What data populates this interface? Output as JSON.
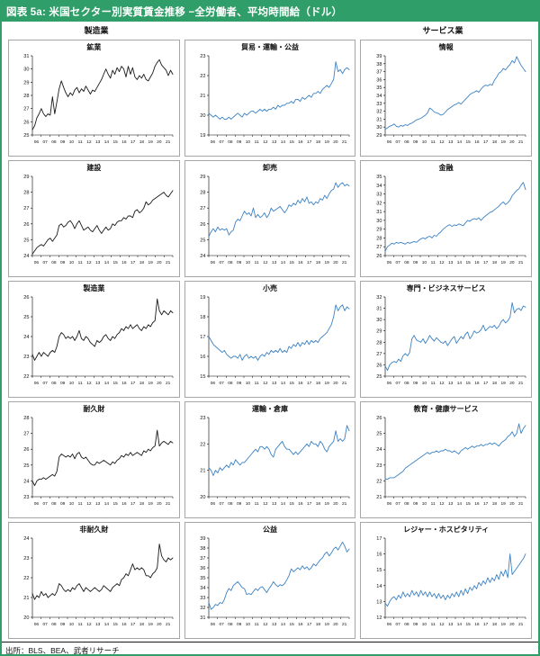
{
  "page": {
    "title": "図表 5a: 米国セクター別実質賃金推移 −全労働者、平均時間給（ドル）",
    "source": "出所：BLS、BEA、武者リサーチ",
    "group_headers": {
      "left": "製造業",
      "right": "サービス業"
    },
    "colors": {
      "header_bg": "#2f9e68",
      "frame_border": "#2f9e68",
      "line_black": "#1a1a1a",
      "line_blue": "#3c82c4",
      "box_border": "#a6a6a6"
    }
  },
  "chart_common": {
    "x_tick_labels": [
      "06",
      "07",
      "08",
      "09",
      "10",
      "11",
      "12",
      "13",
      "14",
      "15",
      "16",
      "17",
      "18",
      "19",
      "20",
      "21"
    ],
    "x_unit": "year",
    "points_per_year": 4,
    "grid": "off",
    "legend": "none"
  },
  "chart_data": [
    {
      "type": "line",
      "title": "鉱業",
      "group": "製造業",
      "color": "black",
      "ylim": [
        25,
        31
      ],
      "yticks": [
        25,
        26,
        27,
        28,
        29,
        30,
        31
      ],
      "values": [
        25.4,
        25.7,
        26.3,
        26.6,
        27.0,
        26.6,
        26.4,
        26.6,
        26.5,
        27.9,
        26.6,
        27.5,
        28.5,
        29.1,
        28.6,
        28.2,
        27.9,
        28.2,
        28.0,
        28.4,
        28.6,
        28.2,
        28.5,
        28.3,
        28.7,
        28.4,
        28.1,
        28.4,
        28.3,
        28.6,
        28.9,
        29.2,
        29.6,
        30.0,
        29.6,
        29.3,
        29.9,
        29.6,
        30.1,
        29.8,
        30.2,
        30.0,
        29.4,
        30.2,
        29.6,
        30.1,
        29.4,
        29.2,
        29.5,
        29.3,
        29.6,
        29.2,
        29.1,
        29.4,
        29.7,
        30.2,
        30.5,
        30.7,
        30.3,
        30.1,
        29.9,
        29.5,
        29.9,
        29.6
      ]
    },
    {
      "type": "line",
      "title": "貿易・運輸・公益",
      "group": "サービス業",
      "color": "blue",
      "ylim": [
        19,
        23
      ],
      "yticks": [
        19,
        20,
        21,
        22,
        23
      ],
      "values": [
        20.1,
        20.0,
        19.9,
        20.0,
        19.9,
        19.8,
        19.9,
        19.8,
        19.8,
        19.9,
        19.8,
        19.9,
        20.0,
        20.1,
        20.0,
        19.9,
        20.1,
        20.0,
        20.1,
        20.2,
        20.2,
        20.1,
        20.2,
        20.3,
        20.2,
        20.3,
        20.2,
        20.3,
        20.3,
        20.4,
        20.3,
        20.5,
        20.4,
        20.5,
        20.5,
        20.6,
        20.6,
        20.7,
        20.6,
        20.8,
        20.8,
        20.7,
        20.9,
        20.8,
        20.9,
        21.0,
        20.9,
        21.1,
        21.1,
        21.2,
        21.1,
        21.3,
        21.4,
        21.5,
        21.4,
        21.6,
        21.8,
        22.7,
        22.2,
        22.3,
        22.1,
        22.3,
        22.4,
        22.3
      ]
    },
    {
      "type": "line",
      "title": "情報",
      "group": "サービス業",
      "color": "blue",
      "ylim": [
        29,
        39
      ],
      "yticks": [
        29,
        30,
        31,
        32,
        33,
        34,
        35,
        36,
        37,
        38,
        39
      ],
      "values": [
        29.7,
        29.9,
        30.1,
        30.2,
        30.4,
        30.1,
        30.0,
        30.2,
        30.1,
        30.3,
        30.2,
        30.4,
        30.5,
        30.7,
        30.9,
        31.0,
        31.1,
        31.3,
        31.5,
        31.8,
        32.4,
        32.2,
        31.9,
        31.8,
        31.7,
        31.5,
        31.6,
        31.9,
        32.2,
        32.4,
        32.6,
        32.8,
        32.9,
        33.1,
        32.9,
        33.2,
        33.5,
        33.8,
        34.1,
        34.3,
        34.4,
        34.6,
        34.4,
        34.8,
        35.1,
        35.3,
        35.2,
        35.4,
        35.3,
        35.9,
        36.3,
        36.8,
        37.0,
        37.4,
        37.2,
        37.6,
        37.9,
        38.4,
        38.1,
        38.9,
        38.3,
        37.8,
        37.4,
        37.0
      ]
    },
    {
      "type": "line",
      "title": "建設",
      "group": "製造業",
      "color": "black",
      "ylim": [
        24,
        29
      ],
      "yticks": [
        24,
        25,
        26,
        27,
        28,
        29
      ],
      "values": [
        24.1,
        24.3,
        24.5,
        24.6,
        24.7,
        24.6,
        24.8,
        25.0,
        25.1,
        24.9,
        25.1,
        25.3,
        25.9,
        26.0,
        25.8,
        25.9,
        26.1,
        26.2,
        26.0,
        25.7,
        26.0,
        26.2,
        25.9,
        25.6,
        25.7,
        25.8,
        25.6,
        25.5,
        25.7,
        25.9,
        25.6,
        25.4,
        25.6,
        25.8,
        25.6,
        25.7,
        26.0,
        25.9,
        26.1,
        26.2,
        26.2,
        26.4,
        26.3,
        26.5,
        26.5,
        26.4,
        26.8,
        26.9,
        26.7,
        26.8,
        27.0,
        27.4,
        27.2,
        27.3,
        27.5,
        27.6,
        27.7,
        27.8,
        27.9,
        28.0,
        27.8,
        27.7,
        27.9,
        28.1
      ]
    },
    {
      "type": "line",
      "title": "卸売",
      "group": "サービス業",
      "color": "blue",
      "ylim": [
        24,
        29
      ],
      "yticks": [
        24,
        25,
        26,
        27,
        28,
        29
      ],
      "values": [
        25.2,
        25.5,
        25.7,
        25.5,
        25.8,
        25.6,
        25.7,
        25.6,
        25.7,
        25.3,
        25.5,
        25.6,
        26.1,
        26.3,
        26.2,
        26.5,
        26.8,
        26.6,
        26.7,
        26.5,
        27.0,
        26.4,
        26.6,
        26.4,
        26.5,
        26.7,
        26.4,
        26.6,
        27.0,
        26.8,
        26.9,
        27.0,
        27.1,
        26.9,
        26.7,
        26.9,
        27.2,
        27.1,
        27.3,
        27.2,
        27.5,
        27.3,
        27.6,
        27.4,
        27.7,
        27.3,
        27.4,
        27.2,
        27.4,
        27.3,
        27.6,
        27.5,
        27.8,
        27.6,
        27.9,
        28.1,
        28.2,
        28.6,
        28.3,
        28.5,
        28.6,
        28.4,
        28.5,
        28.4
      ]
    },
    {
      "type": "line",
      "title": "金融",
      "group": "サービス業",
      "color": "blue",
      "ylim": [
        26,
        35
      ],
      "yticks": [
        26,
        27,
        28,
        29,
        30,
        31,
        32,
        33,
        34,
        35
      ],
      "values": [
        26.5,
        27.0,
        27.2,
        27.4,
        27.3,
        27.5,
        27.4,
        27.5,
        27.4,
        27.3,
        27.5,
        27.4,
        27.5,
        27.6,
        27.5,
        27.7,
        27.9,
        28.0,
        27.9,
        28.1,
        28.2,
        28.0,
        28.3,
        28.2,
        28.5,
        28.7,
        29.0,
        29.2,
        29.4,
        29.5,
        29.3,
        29.5,
        29.4,
        29.6,
        29.5,
        29.4,
        29.7,
        30.0,
        29.9,
        30.1,
        30.2,
        30.1,
        30.3,
        30.0,
        30.3,
        30.5,
        30.7,
        30.9,
        31.0,
        31.2,
        31.4,
        31.6,
        31.9,
        32.1,
        31.8,
        32.0,
        32.3,
        32.8,
        33.1,
        33.4,
        33.6,
        34.0,
        34.3,
        33.5
      ]
    },
    {
      "type": "line",
      "title": "製造業",
      "group": "製造業",
      "color": "black",
      "ylim": [
        22,
        26
      ],
      "yticks": [
        22,
        23,
        24,
        25,
        26
      ],
      "values": [
        23.1,
        22.8,
        23.0,
        23.2,
        23.0,
        23.2,
        23.1,
        23.0,
        23.2,
        23.3,
        23.2,
        23.5,
        24.0,
        24.2,
        24.1,
        23.9,
        24.0,
        23.9,
        24.0,
        23.8,
        24.0,
        24.3,
        23.9,
        23.8,
        24.0,
        23.9,
        23.7,
        23.6,
        23.5,
        23.8,
        23.7,
        23.8,
        24.0,
        24.1,
        23.9,
        23.8,
        24.0,
        23.9,
        24.1,
        24.2,
        24.4,
        24.3,
        24.5,
        24.4,
        24.6,
        24.4,
        24.5,
        24.6,
        24.4,
        24.3,
        24.5,
        24.4,
        24.6,
        24.5,
        24.7,
        24.8,
        25.9,
        25.3,
        25.1,
        25.3,
        25.2,
        25.1,
        25.3,
        25.2
      ]
    },
    {
      "type": "line",
      "title": "小売",
      "group": "サービス業",
      "color": "blue",
      "ylim": [
        15,
        19
      ],
      "yticks": [
        15,
        16,
        17,
        18,
        19
      ],
      "values": [
        17.0,
        16.8,
        16.6,
        16.5,
        16.4,
        16.3,
        16.2,
        16.3,
        16.1,
        16.0,
        15.9,
        16.0,
        16.0,
        15.9,
        16.1,
        15.8,
        16.0,
        16.1,
        15.9,
        16.0,
        15.9,
        16.0,
        15.8,
        16.0,
        16.1,
        16.0,
        16.2,
        16.1,
        16.3,
        16.2,
        16.3,
        16.2,
        16.4,
        16.2,
        16.3,
        16.2,
        16.5,
        16.4,
        16.6,
        16.5,
        16.7,
        16.5,
        16.7,
        16.6,
        16.8,
        16.6,
        16.8,
        16.7,
        16.8,
        16.7,
        16.9,
        17.0,
        17.1,
        17.2,
        17.4,
        17.6,
        18.0,
        18.6,
        18.3,
        18.5,
        18.6,
        18.3,
        18.5,
        18.4
      ]
    },
    {
      "type": "line",
      "title": "専門・ビジネスサービス",
      "group": "サービス業",
      "color": "blue",
      "ylim": [
        25,
        32
      ],
      "yticks": [
        25,
        26,
        27,
        28,
        29,
        30,
        31,
        32
      ],
      "values": [
        25.9,
        25.5,
        26.0,
        26.2,
        26.3,
        26.2,
        26.5,
        26.3,
        26.8,
        27.0,
        26.8,
        27.1,
        28.3,
        28.6,
        28.2,
        28.1,
        28.0,
        28.3,
        27.9,
        28.2,
        28.6,
        28.3,
        28.1,
        28.4,
        28.2,
        28.0,
        27.9,
        28.1,
        27.7,
        28.0,
        28.3,
        28.5,
        27.9,
        28.2,
        28.5,
        28.3,
        28.7,
        28.9,
        28.3,
        28.6,
        29.0,
        28.8,
        28.9,
        29.1,
        29.5,
        29.0,
        29.2,
        29.4,
        29.3,
        29.5,
        29.2,
        29.4,
        29.8,
        30.0,
        29.7,
        29.9,
        30.2,
        31.5,
        30.6,
        30.9,
        31.0,
        30.8,
        31.2,
        31.1
      ]
    },
    {
      "type": "line",
      "title": "耐久財",
      "group": "製造業",
      "color": "black",
      "ylim": [
        23,
        28
      ],
      "yticks": [
        23,
        24,
        25,
        26,
        27,
        28
      ],
      "values": [
        24.0,
        23.7,
        24.0,
        24.1,
        24.1,
        24.2,
        24.1,
        24.2,
        24.3,
        24.4,
        24.3,
        24.6,
        25.5,
        25.7,
        25.6,
        25.5,
        25.6,
        25.5,
        25.7,
        25.4,
        25.7,
        25.8,
        25.5,
        25.4,
        25.5,
        25.3,
        25.1,
        25.0,
        25.0,
        25.2,
        25.1,
        25.2,
        25.3,
        25.2,
        25.1,
        25.0,
        25.2,
        25.1,
        25.3,
        25.4,
        25.6,
        25.5,
        25.7,
        25.6,
        25.8,
        25.6,
        25.7,
        25.8,
        25.7,
        25.6,
        25.9,
        25.8,
        26.0,
        25.9,
        26.1,
        26.2,
        27.2,
        26.2,
        26.4,
        26.5,
        26.4,
        26.3,
        26.5,
        26.4
      ]
    },
    {
      "type": "line",
      "title": "運輸・倉庫",
      "group": "サービス業",
      "color": "blue",
      "ylim": [
        20,
        23
      ],
      "yticks": [
        20,
        21,
        22,
        23
      ],
      "values": [
        21.1,
        21.0,
        20.8,
        21.0,
        20.9,
        21.1,
        21.0,
        21.1,
        21.2,
        21.1,
        21.3,
        21.2,
        21.4,
        21.3,
        21.2,
        21.3,
        21.3,
        21.4,
        21.5,
        21.6,
        21.7,
        21.8,
        21.7,
        21.9,
        21.9,
        21.8,
        21.9,
        21.8,
        21.6,
        21.5,
        21.8,
        21.9,
        22.0,
        22.1,
        21.9,
        21.8,
        21.8,
        21.7,
        21.6,
        21.7,
        21.6,
        21.7,
        21.8,
        21.9,
        22.0,
        21.9,
        22.1,
        22.0,
        22.0,
        21.9,
        22.1,
        22.0,
        21.8,
        21.7,
        21.9,
        22.0,
        22.1,
        22.5,
        22.1,
        22.2,
        22.1,
        22.2,
        22.7,
        22.5
      ]
    },
    {
      "type": "line",
      "title": "教育・健康サービス",
      "group": "サービス業",
      "color": "blue",
      "ylim": [
        21,
        26
      ],
      "yticks": [
        21,
        22,
        23,
        24,
        25,
        26
      ],
      "values": [
        22.1,
        22.1,
        22.2,
        22.2,
        22.2,
        22.3,
        22.4,
        22.5,
        22.6,
        22.8,
        22.9,
        23.0,
        23.1,
        23.2,
        23.3,
        23.4,
        23.5,
        23.6,
        23.7,
        23.8,
        23.7,
        23.8,
        23.8,
        23.9,
        23.8,
        23.9,
        23.9,
        24.0,
        23.9,
        23.9,
        23.8,
        23.9,
        23.8,
        23.7,
        23.9,
        24.0,
        24.1,
        24.0,
        24.1,
        24.2,
        24.1,
        24.2,
        24.2,
        24.3,
        24.2,
        24.3,
        24.3,
        24.4,
        24.3,
        24.4,
        24.3,
        24.2,
        24.4,
        24.5,
        24.6,
        24.8,
        24.9,
        25.1,
        24.8,
        25.0,
        25.6,
        25.0,
        25.3,
        25.5
      ]
    },
    {
      "type": "line",
      "title": "非耐久財",
      "group": "製造業",
      "color": "black",
      "ylim": [
        20,
        24
      ],
      "yticks": [
        20,
        21,
        22,
        23,
        24
      ],
      "values": [
        21.2,
        20.9,
        21.1,
        21.0,
        21.3,
        21.1,
        21.2,
        21.0,
        21.1,
        21.2,
        21.1,
        21.3,
        21.7,
        21.6,
        21.4,
        21.3,
        21.4,
        21.3,
        21.5,
        21.4,
        21.6,
        21.7,
        21.5,
        21.3,
        21.5,
        21.4,
        21.3,
        21.4,
        21.5,
        21.4,
        21.3,
        21.4,
        21.6,
        21.5,
        21.4,
        21.3,
        21.5,
        21.6,
        21.7,
        21.6,
        21.9,
        22.0,
        22.2,
        22.1,
        22.4,
        22.7,
        22.4,
        22.5,
        22.4,
        22.5,
        22.4,
        22.1,
        22.1,
        22.0,
        22.2,
        22.3,
        22.5,
        23.7,
        23.1,
        22.9,
        22.8,
        23.0,
        22.9,
        23.0
      ]
    },
    {
      "type": "line",
      "title": "公益",
      "group": "サービス業",
      "color": "blue",
      "ylim": [
        31,
        39
      ],
      "yticks": [
        31,
        32,
        33,
        34,
        35,
        36,
        37,
        38,
        39
      ],
      "values": [
        32.5,
        31.8,
        32.0,
        32.3,
        32.2,
        32.5,
        32.4,
        32.8,
        33.5,
        33.9,
        33.7,
        34.2,
        34.4,
        34.6,
        34.3,
        34.0,
        33.9,
        33.3,
        33.4,
        33.3,
        33.6,
        33.9,
        33.7,
        34.0,
        34.1,
        33.8,
        33.5,
        33.9,
        34.2,
        34.6,
        34.3,
        34.1,
        34.3,
        34.2,
        34.4,
        34.8,
        35.2,
        35.9,
        35.6,
        35.8,
        36.0,
        35.8,
        36.2,
        35.9,
        36.1,
        35.8,
        36.0,
        36.4,
        36.2,
        36.5,
        36.8,
        37.0,
        37.4,
        37.6,
        37.2,
        37.5,
        37.9,
        38.1,
        37.8,
        38.2,
        38.6,
        38.2,
        37.6,
        37.9
      ]
    },
    {
      "type": "line",
      "title": "レジャー・ホスピタリティ",
      "group": "サービス業",
      "color": "blue",
      "ylim": [
        12,
        17
      ],
      "yticks": [
        12,
        13,
        14,
        15,
        16,
        17
      ],
      "values": [
        12.9,
        12.7,
        13.0,
        13.2,
        13.3,
        13.1,
        13.4,
        13.2,
        13.6,
        13.3,
        13.5,
        13.3,
        13.7,
        13.4,
        13.6,
        13.3,
        13.7,
        13.4,
        13.6,
        13.3,
        13.6,
        13.3,
        13.5,
        13.2,
        13.5,
        13.2,
        13.4,
        13.1,
        13.4,
        13.2,
        13.5,
        13.3,
        13.6,
        13.3,
        13.7,
        13.4,
        13.8,
        13.5,
        13.9,
        13.7,
        14.0,
        13.8,
        14.2,
        14.0,
        14.3,
        14.1,
        14.5,
        14.2,
        14.5,
        14.3,
        14.7,
        14.4,
        14.9,
        14.6,
        15.0,
        14.5,
        16.0,
        14.7,
        14.9,
        15.1,
        15.3,
        15.5,
        15.7,
        16.0
      ]
    }
  ]
}
